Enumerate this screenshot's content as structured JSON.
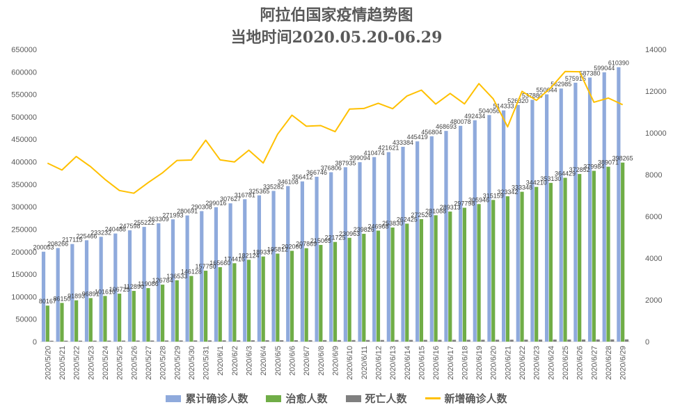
{
  "title": "阿拉伯国家疫情趋势图",
  "subtitle": "当地时间2020.05.20-06.29",
  "chart_data": {
    "type": "bar",
    "categories": [
      "2020/5/20",
      "2020/5/21",
      "2020/5/22",
      "2020/5/23",
      "2020/5/24",
      "2020/5/25",
      "2020/5/26",
      "2020/5/27",
      "2020/5/28",
      "2020/5/29",
      "2020/5/30",
      "2020/5/31",
      "2020/6/1",
      "2020/6/2",
      "2020/6/3",
      "2020/6/4",
      "2020/6/5",
      "2020/6/6",
      "2020/6/7",
      "2020/6/8",
      "2020/6/9",
      "2020/6/10",
      "2020/6/11",
      "2020/6/12",
      "2020/6/13",
      "2020/6/14",
      "2020/6/15",
      "2020/6/16",
      "2020/6/17",
      "2020/6/18",
      "2020/6/19",
      "2020/6/20",
      "2020/6/21",
      "2020/6/22",
      "2020/6/23",
      "2020/6/24",
      "2020/6/25",
      "2020/6/26",
      "2020/6/27",
      "2020/6/28",
      "2020/6/29"
    ],
    "series": [
      {
        "name": "累计确诊人数",
        "axis": "left",
        "color": "#8faadc",
        "show_labels": true,
        "values": [
          200053,
          208266,
          217115,
          225466,
          233232,
          240488,
          247598,
          255222,
          263309,
          271993,
          280691,
          290308,
          299016,
          307627,
          316781,
          325365,
          335282,
          346108,
          356412,
          366746,
          376806,
          387935,
          399094,
          410474,
          421621,
          433384,
          445419,
          456804,
          468693,
          480078,
          492434,
          504056,
          514333,
          526320,
          537880,
          550044,
          562985,
          575916,
          587380,
          599044,
          610390
        ]
      },
      {
        "name": "治愈人数",
        "axis": "left",
        "color": "#70ad47",
        "show_labels": true,
        "values": [
          80167,
          86150,
          91893,
          96891,
          101610,
          106725,
          112890,
          119086,
          126784,
          136533,
          146128,
          157750,
          165660,
          174416,
          182124,
          189337,
          195812,
          202060,
          207869,
          215065,
          221725,
          230963,
          239826,
          246968,
          253830,
          262425,
          272526,
          281088,
          289313,
          297798,
          305946,
          315159,
          323342,
          333348,
          344210,
          353130,
          364429,
          372852,
          379984,
          389071,
          398265
        ]
      },
      {
        "name": "死亡人数",
        "axis": "left",
        "color": "#7f7f7f",
        "show_labels": false,
        "values": [
          2010,
          2080,
          2150,
          2220,
          2290,
          2360,
          2430,
          2500,
          2570,
          2640,
          2710,
          2780,
          2850,
          2920,
          2990,
          3060,
          3130,
          3200,
          3270,
          3340,
          3410,
          3480,
          3560,
          3640,
          3720,
          3800,
          3880,
          3960,
          4040,
          4120,
          4200,
          4280,
          4360,
          4440,
          4520,
          4600,
          4690,
          4780,
          4870,
          4960,
          5050
        ]
      },
      {
        "name": "新增确诊人数",
        "axis": "right",
        "type": "line",
        "color": "#ffc000",
        "show_labels": false,
        "values": [
          8550,
          8220,
          8870,
          8380,
          7770,
          7240,
          7110,
          7620,
          8090,
          8680,
          8700,
          9650,
          8710,
          8610,
          9170,
          8560,
          9940,
          10850,
          10320,
          10350,
          10060,
          11140,
          11170,
          11420,
          11160,
          11770,
          12050,
          11380,
          11890,
          11390,
          12360,
          11630,
          10290,
          11990,
          11560,
          12160,
          12940,
          12930,
          11470,
          11670,
          11350
        ]
      }
    ],
    "y_left": {
      "min": 0,
      "max": 650000,
      "step": 50000
    },
    "y_right": {
      "min": 0,
      "max": 14000,
      "step": 2000
    },
    "legend_position": "bottom",
    "grid": false
  }
}
